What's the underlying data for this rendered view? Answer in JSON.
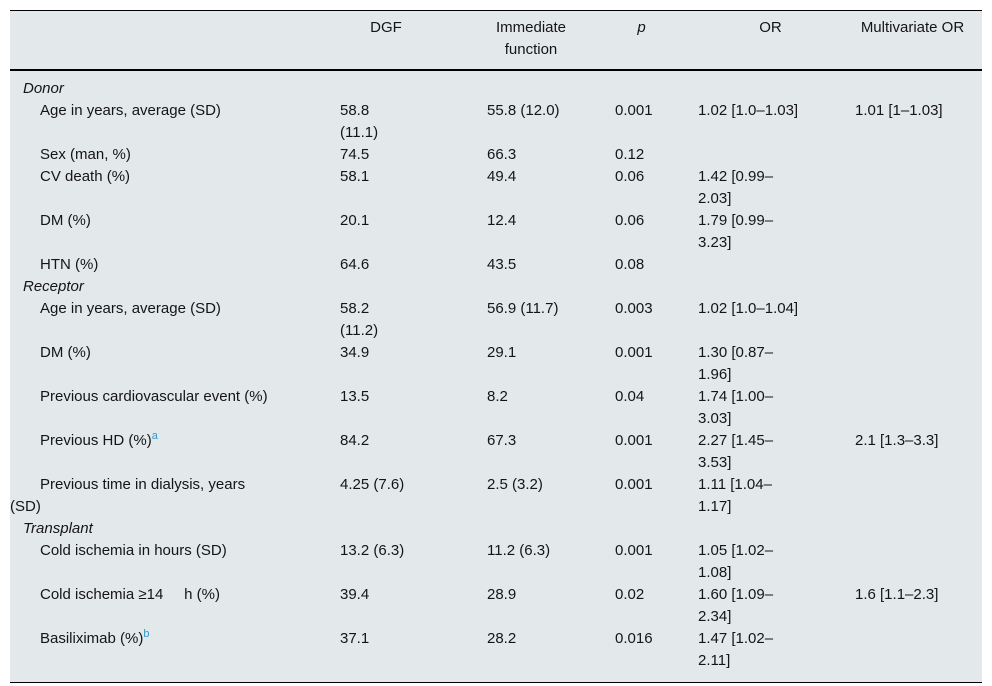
{
  "colors": {
    "table_background": "#e3e8ea",
    "rule_color": "#000000",
    "footnote_link_color": "#2e9ad2",
    "text_color": "#151515"
  },
  "table": {
    "header": {
      "dgf": "DGF",
      "immediate": "Immediate\nfunction",
      "p": "p",
      "or": "OR",
      "multivariate_or": "Multivariate OR"
    },
    "sections": [
      {
        "title": "Donor",
        "rows": [
          {
            "label": "Age in years, average (SD)",
            "dgf": "58.8\n(11.1)",
            "immediate": "55.8 (12.0)",
            "p": "0.001",
            "or": "1.02 [1.0–1.03]",
            "multivariate_or": "1.01 [1–1.03]"
          },
          {
            "label": "Sex (man, %)",
            "dgf": "74.5",
            "immediate": "66.3",
            "p": "0.12",
            "or": "",
            "multivariate_or": ""
          },
          {
            "label": "CV death (%)",
            "dgf": "58.1",
            "immediate": "49.4",
            "p": "0.06",
            "or": "1.42 [0.99–\n2.03]",
            "multivariate_or": ""
          },
          {
            "label": "DM (%)",
            "dgf": "20.1",
            "immediate": "12.4",
            "p": "0.06",
            "or": "1.79 [0.99–\n3.23]",
            "multivariate_or": ""
          },
          {
            "label": "HTN (%)",
            "dgf": "64.6",
            "immediate": "43.5",
            "p": "0.08",
            "or": "",
            "multivariate_or": ""
          }
        ]
      },
      {
        "title": "Receptor",
        "rows": [
          {
            "label": "Age in years, average (SD)",
            "dgf": "58.2\n(11.2)",
            "immediate": "56.9 (11.7)",
            "p": "0.003",
            "or": "1.02 [1.0–1.04]",
            "multivariate_or": ""
          },
          {
            "label": "DM (%)",
            "dgf": "34.9",
            "immediate": "29.1",
            "p": "0.001",
            "or": "1.30 [0.87–\n1.96]",
            "multivariate_or": ""
          },
          {
            "label": "Previous cardiovascular event (%)",
            "dgf": "13.5",
            "immediate": "8.2",
            "p": "0.04",
            "or": "1.74 [1.00–\n3.03]",
            "multivariate_or": ""
          },
          {
            "label": "Previous HD (%)",
            "footnote": "a",
            "dgf": "84.2",
            "immediate": "67.3",
            "p": "0.001",
            "or": "2.27 [1.45–\n3.53]",
            "multivariate_or": "2.1 [1.3–3.3]"
          },
          {
            "label": "Previous time in dialysis, years\n(SD)",
            "dgf": "4.25 (7.6)",
            "immediate": "2.5 (3.2)",
            "p": "0.001",
            "or": "1.11 [1.04–\n1.17]",
            "multivariate_or": ""
          }
        ]
      },
      {
        "title": "Transplant",
        "rows": [
          {
            "label": "Cold ischemia in hours (SD)",
            "dgf": "13.2 (6.3)",
            "immediate": "11.2 (6.3)",
            "p": "0.001",
            "or": "1.05 [1.02–\n1.08]",
            "multivariate_or": ""
          },
          {
            "label": "Cold ischemia ≥14     h (%)",
            "dgf": "39.4",
            "immediate": "28.9",
            "p": "0.02",
            "or": "1.60 [1.09–\n2.34]",
            "multivariate_or": "1.6 [1.1–2.3]"
          },
          {
            "label": "Basiliximab (%)",
            "footnote": "b",
            "dgf": "37.1",
            "immediate": "28.2",
            "p": "0.016",
            "or": "1.47 [1.02–\n2.11]",
            "multivariate_or": ""
          }
        ]
      }
    ]
  }
}
